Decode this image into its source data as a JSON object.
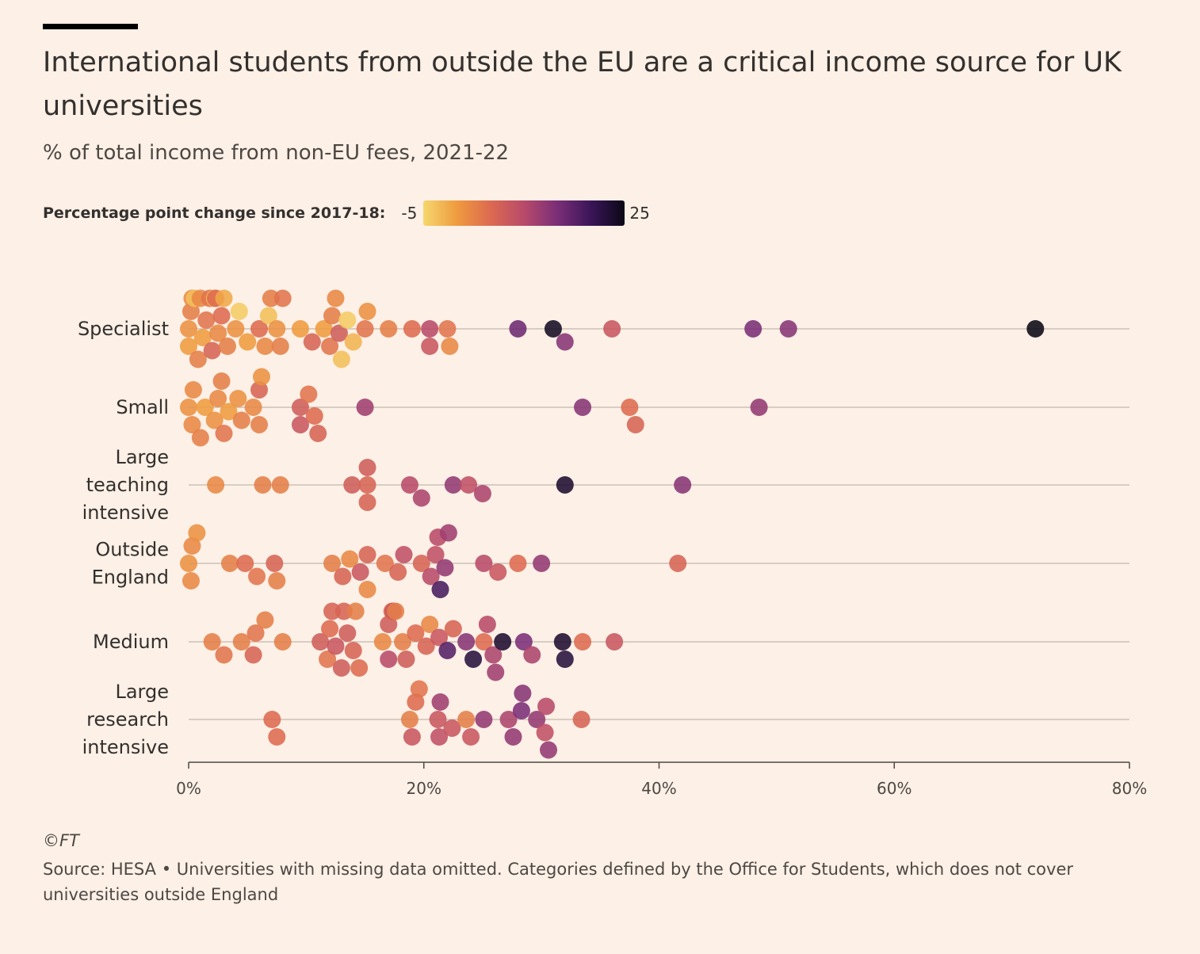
{
  "header": {
    "title": "International students from outside the EU are a critical income source for UK universities",
    "subtitle": "% of total income from non-EU fees, 2021-22"
  },
  "legend": {
    "title": "Percentage point change since 2017-18:",
    "min_label": "-5",
    "max_label": "25",
    "colors": [
      "#f5d76e",
      "#ef9b3f",
      "#dd6a50",
      "#b84a6a",
      "#7a2e78",
      "#3a1558",
      "#0b0816"
    ]
  },
  "footer": {
    "copyright": "©FT",
    "source": "Source: HESA • Universities with missing data omitted. Categories defined by the Office for Students, which does not cover universities outside England"
  },
  "chart_data": {
    "type": "scatter",
    "variant": "beeswarm",
    "x_axis": {
      "min": 0,
      "max": 80,
      "ticks": [
        "0%",
        "20%",
        "40%",
        "60%",
        "80%"
      ],
      "tick_values": [
        0,
        20,
        40,
        60,
        80
      ]
    },
    "color_scale": {
      "min": -5,
      "max": 25
    },
    "categories": [
      {
        "name": "Specialist",
        "label_lines": [
          "Specialist"
        ],
        "points": [
          [
            0,
            1
          ],
          [
            0.3,
            2
          ],
          [
            0.5,
            -3
          ],
          [
            0.8,
            3
          ],
          [
            1.2,
            0
          ],
          [
            1.5,
            4
          ],
          [
            2,
            6
          ],
          [
            2.2,
            -2
          ],
          [
            2.5,
            2
          ],
          [
            2.8,
            5
          ],
          [
            3,
            -1
          ],
          [
            3.3,
            3
          ],
          [
            4,
            1
          ],
          [
            4.3,
            -4
          ],
          [
            5,
            0
          ],
          [
            6,
            5
          ],
          [
            6.5,
            2
          ],
          [
            6.8,
            -3
          ],
          [
            7,
            3
          ],
          [
            7.5,
            1
          ],
          [
            8,
            4
          ],
          [
            9.5,
            0
          ],
          [
            10.5,
            6
          ],
          [
            11.5,
            0
          ],
          [
            12,
            4
          ],
          [
            12.5,
            2
          ],
          [
            12.8,
            7
          ],
          [
            13,
            -3
          ],
          [
            13.5,
            -4
          ],
          [
            14,
            -2
          ],
          [
            15,
            4
          ],
          [
            15.2,
            1
          ],
          [
            17,
            3
          ],
          [
            19,
            5
          ],
          [
            20.5,
            10
          ],
          [
            20.5,
            8
          ],
          [
            22,
            4
          ],
          [
            22.2,
            2
          ],
          [
            28,
            16
          ],
          [
            31,
            24
          ],
          [
            32,
            14
          ],
          [
            36,
            8
          ],
          [
            48,
            15
          ],
          [
            51,
            14
          ],
          [
            72,
            26
          ],
          [
            0,
            0
          ],
          [
            1,
            2
          ],
          [
            0.2,
            3
          ],
          [
            1.8,
            4
          ],
          [
            2.3,
            5
          ],
          [
            7.8,
            3
          ],
          [
            12.2,
            3
          ]
        ]
      },
      {
        "name": "Small",
        "label_lines": [
          "Small"
        ],
        "points": [
          [
            0,
            1
          ],
          [
            0.4,
            2
          ],
          [
            1,
            3
          ],
          [
            1.4,
            0
          ],
          [
            2.2,
            1
          ],
          [
            2.5,
            2
          ],
          [
            3,
            4
          ],
          [
            3.4,
            0
          ],
          [
            4.2,
            1
          ],
          [
            4.5,
            3
          ],
          [
            5.5,
            2
          ],
          [
            6,
            3
          ],
          [
            6,
            6
          ],
          [
            9.5,
            7
          ],
          [
            9.5,
            8
          ],
          [
            10.2,
            4
          ],
          [
            10.7,
            5
          ],
          [
            11,
            6
          ],
          [
            15,
            12
          ],
          [
            33.5,
            14
          ],
          [
            37.5,
            5
          ],
          [
            38,
            6
          ],
          [
            48.5,
            13
          ],
          [
            0.3,
            2
          ],
          [
            2.8,
            3
          ],
          [
            6.2,
            1
          ]
        ]
      },
      {
        "name": "Large teaching intensive",
        "label_lines": [
          "Large",
          "teaching",
          "intensive"
        ],
        "points": [
          [
            2.3,
            2
          ],
          [
            6.3,
            3
          ],
          [
            7.8,
            3
          ],
          [
            13.9,
            7
          ],
          [
            15.2,
            6
          ],
          [
            15.2,
            6
          ],
          [
            15.2,
            7
          ],
          [
            18.8,
            10
          ],
          [
            19.8,
            11
          ],
          [
            22.5,
            13
          ],
          [
            23.8,
            9
          ],
          [
            25,
            11
          ],
          [
            32,
            23
          ],
          [
            42,
            14
          ]
        ]
      },
      {
        "name": "Outside England",
        "label_lines": [
          "Outside",
          "England"
        ],
        "points": [
          [
            0,
            1
          ],
          [
            0.3,
            2
          ],
          [
            0.7,
            1
          ],
          [
            0.2,
            2
          ],
          [
            3.5,
            3
          ],
          [
            4.8,
            5
          ],
          [
            5.8,
            4
          ],
          [
            7.3,
            6
          ],
          [
            7.5,
            3
          ],
          [
            12.2,
            3
          ],
          [
            13.1,
            6
          ],
          [
            13.7,
            2
          ],
          [
            15.2,
            6
          ],
          [
            15.2,
            2
          ],
          [
            14.6,
            8
          ],
          [
            16.7,
            4
          ],
          [
            18.3,
            9
          ],
          [
            17.8,
            6
          ],
          [
            19.8,
            6
          ],
          [
            21,
            9
          ],
          [
            21.4,
            19
          ],
          [
            20.6,
            10
          ],
          [
            21.2,
            10
          ],
          [
            21.8,
            13
          ],
          [
            22.1,
            12
          ],
          [
            25.1,
            10
          ],
          [
            26.3,
            8
          ],
          [
            28,
            5
          ],
          [
            30,
            13
          ],
          [
            41.6,
            6
          ]
        ]
      },
      {
        "name": "Medium",
        "label_lines": [
          "Medium"
        ],
        "points": [
          [
            2,
            3
          ],
          [
            3,
            4
          ],
          [
            4.5,
            3
          ],
          [
            5.5,
            6
          ],
          [
            5.7,
            4
          ],
          [
            6.5,
            3
          ],
          [
            8,
            3
          ],
          [
            11.2,
            7
          ],
          [
            11.8,
            4
          ],
          [
            12,
            5
          ],
          [
            12.2,
            6
          ],
          [
            12.5,
            8
          ],
          [
            13,
            7
          ],
          [
            13.2,
            6
          ],
          [
            13.5,
            7
          ],
          [
            14,
            6
          ],
          [
            14.2,
            3
          ],
          [
            14.5,
            5
          ],
          [
            16.5,
            2
          ],
          [
            17,
            10
          ],
          [
            17.4,
            8
          ],
          [
            17.6,
            3
          ],
          [
            18.2,
            3
          ],
          [
            18.5,
            7
          ],
          [
            19.3,
            5
          ],
          [
            20.2,
            6
          ],
          [
            20.5,
            2
          ],
          [
            21.3,
            8
          ],
          [
            22,
            18
          ],
          [
            22.5,
            6
          ],
          [
            23.6,
            14
          ],
          [
            24.2,
            22
          ],
          [
            25.1,
            5
          ],
          [
            25.4,
            10
          ],
          [
            26.7,
            23
          ],
          [
            28.5,
            15
          ],
          [
            29.2,
            11
          ],
          [
            32,
            22
          ],
          [
            31.8,
            23
          ],
          [
            33.5,
            5
          ],
          [
            36.2,
            8
          ],
          [
            26.1,
            12
          ],
          [
            25.9,
            11
          ],
          [
            17,
            7
          ],
          [
            17.3,
            5
          ]
        ]
      },
      {
        "name": "Large research intensive",
        "label_lines": [
          "Large",
          "research",
          "intensive"
        ],
        "points": [
          [
            7.1,
            5
          ],
          [
            7.5,
            5
          ],
          [
            18.8,
            3
          ],
          [
            19.3,
            5
          ],
          [
            19.6,
            4
          ],
          [
            19,
            8
          ],
          [
            21.2,
            8
          ],
          [
            21.4,
            12
          ],
          [
            21.3,
            9
          ],
          [
            22.4,
            8
          ],
          [
            23.6,
            3
          ],
          [
            24,
            8
          ],
          [
            25.1,
            13
          ],
          [
            27.2,
            11
          ],
          [
            27.6,
            13
          ],
          [
            28.4,
            14
          ],
          [
            28.3,
            15
          ],
          [
            29.6,
            13
          ],
          [
            30.4,
            10
          ],
          [
            30.6,
            13
          ],
          [
            30.3,
            9
          ],
          [
            33.4,
            6
          ]
        ]
      }
    ]
  }
}
